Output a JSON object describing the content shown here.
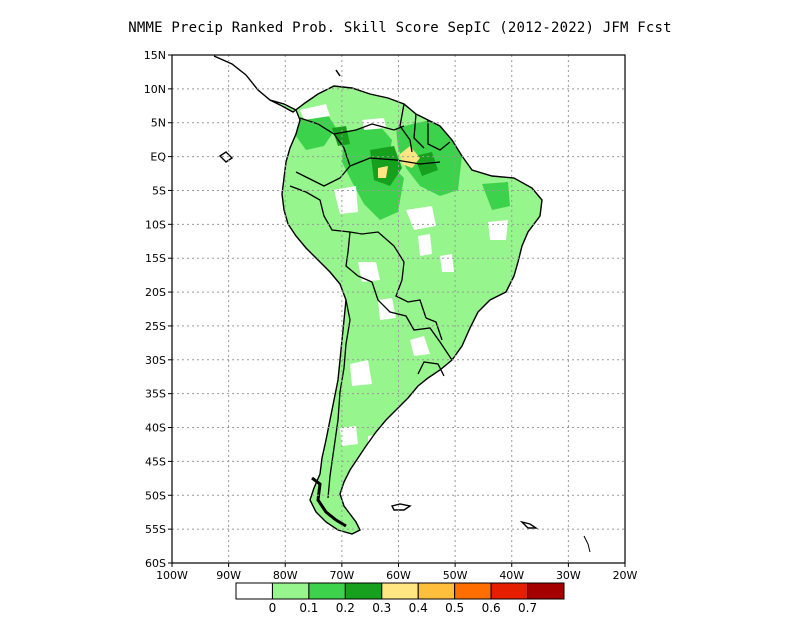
{
  "title": "NMME Precip Ranked Prob. Skill Score SepIC (2012-2022) JFM Fcst",
  "lat_labels": [
    "15N",
    "10N",
    "5N",
    "EQ",
    "5S",
    "10S",
    "15S",
    "20S",
    "25S",
    "30S",
    "35S",
    "40S",
    "45S",
    "50S",
    "55S",
    "60S"
  ],
  "lon_labels": [
    "100W",
    "90W",
    "80W",
    "70W",
    "60W",
    "50W",
    "40W",
    "30W",
    "20W"
  ],
  "colorbar": {
    "colors": [
      "#ffffff",
      "#96f58c",
      "#3cd24b",
      "#16a01e",
      "#ffe682",
      "#ffbe3c",
      "#ff6e00",
      "#e61e00",
      "#a50000"
    ],
    "labels": [
      "0",
      "0.1",
      "0.2",
      "0.3",
      "0.4",
      "0.5",
      "0.6",
      "0.7"
    ]
  },
  "colors": {
    "land_outline": "#000000",
    "grid": "#9a9a9a",
    "frame": "#000000"
  }
}
